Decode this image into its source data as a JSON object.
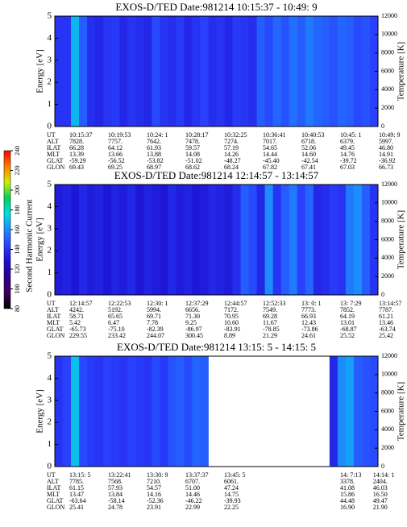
{
  "chart_data": [
    {
      "type": "heatmap",
      "title": "EXOS-D/TED   Date:981214  10:15:37 - 10:49: 9",
      "ylabel": "Energy [eV]",
      "y2label": "Temperature [K]",
      "ylim": [
        0,
        5
      ],
      "yticks": [
        0,
        1,
        2,
        3,
        4,
        5
      ],
      "y2lim": [
        0,
        12000
      ],
      "y2ticks": [
        0,
        2000,
        4000,
        6000,
        8000,
        10000,
        12000
      ],
      "values": [
        140,
        140,
        168,
        150,
        138,
        136,
        140,
        142,
        136,
        140,
        138,
        136,
        146,
        140,
        138,
        142,
        136,
        140,
        144,
        138,
        140,
        136,
        142,
        140,
        138,
        150,
        146,
        152,
        148,
        154,
        150,
        156,
        152,
        150,
        148,
        152,
        150,
        146,
        148,
        144
      ],
      "rows": [
        {
          "label": "UT",
          "values": [
            "10:15:37",
            "10:19:53",
            "10:24: 1",
            "10:28:17",
            "10:32:25",
            "10:36:41",
            "10:40:53",
            "10:45: 1",
            "10:49: 9"
          ]
        },
        {
          "label": "ALT",
          "values": [
            "7828.",
            "7757.",
            "7642.",
            "7478.",
            "7274.",
            "7017.",
            "6718.",
            "6379.",
            "5997."
          ]
        },
        {
          "label": "ILAT",
          "values": [
            "66.28",
            "64.12",
            "61.93",
            "59.57",
            "57.19",
            "54.65",
            "52.06",
            "49.45",
            "46.80"
          ]
        },
        {
          "label": "MLT",
          "values": [
            "13.39",
            "13.66",
            "13.88",
            "14.08",
            "14.26",
            "14.44",
            "14.60",
            "14.76",
            "14.91"
          ]
        },
        {
          "label": "GLAT",
          "values": [
            "-59.29",
            "-56.52",
            "-53.82",
            "-51.02",
            "-48.27",
            "-45.40",
            "-42.54",
            "-39.72",
            "-36.92"
          ]
        },
        {
          "label": "GLON",
          "values": [
            "69.43",
            "69.25",
            "68.97",
            "68.62",
            "68.24",
            "67.82",
            "67.41",
            "67.03",
            "66.73"
          ]
        }
      ]
    },
    {
      "type": "heatmap",
      "title": "EXOS-D/TED   Date:981214  12:14:57 - 13:14:57",
      "ylabel": "Energy [eV]",
      "y2label": "Temperature [K]",
      "ylim": [
        0,
        5
      ],
      "yticks": [
        0,
        1,
        2,
        3,
        4,
        5
      ],
      "y2lim": [
        0,
        12000
      ],
      "y2ticks": [
        0,
        2000,
        4000,
        6000,
        8000,
        10000,
        12000
      ],
      "values": [
        132,
        134,
        130,
        136,
        132,
        134,
        130,
        134,
        132,
        136,
        130,
        134,
        132,
        130,
        136,
        132,
        134,
        130,
        132,
        136,
        134,
        132,
        138,
        150,
        146,
        136,
        160,
        140,
        150,
        156,
        144,
        152,
        136,
        138,
        142,
        140,
        156,
        160,
        150,
        140
      ],
      "rows": [
        {
          "label": "UT",
          "values": [
            "12:14:57",
            "12:22:53",
            "12:30: 1",
            "12:37:29",
            "12:44:57",
            "12:52:33",
            "13: 0: 1",
            "13: 7:29",
            "13:14:57"
          ]
        },
        {
          "label": "ALT",
          "values": [
            "4242.",
            "5192.",
            "5994.",
            "6656.",
            "7172.",
            "7549.",
            "7773.",
            "7852.",
            "7787."
          ]
        },
        {
          "label": "ILAT",
          "values": [
            "58.71",
            "65.65",
            "69.71",
            "71.30",
            "70.95",
            "69.28",
            "66.93",
            "64.19",
            "61.21"
          ]
        },
        {
          "label": "MLT",
          "values": [
            "5.42",
            "6.47",
            "7.78",
            "9.25",
            "10.60",
            "11.67",
            "12.43",
            "13.01",
            "13.46"
          ]
        },
        {
          "label": "GLAT",
          "values": [
            "-65.73",
            "-75.10",
            "-82.39",
            "-86.97",
            "-83.91",
            "-78.85",
            "-73.86",
            "-68.87",
            "-63.74"
          ]
        },
        {
          "label": "GLON",
          "values": [
            "229.55",
            "233.42",
            "244.07",
            "300.45",
            "8.89",
            "21.29",
            "24.61",
            "25.52",
            "25.42"
          ]
        }
      ]
    },
    {
      "type": "heatmap",
      "title": "EXOS-D/TED   Date:981214  13:15: 5 - 14:15: 5",
      "ylabel": "Energy [eV]",
      "y2label": "Temperature [K]",
      "ylim": [
        0,
        5
      ],
      "yticks": [
        0,
        1,
        2,
        3,
        4,
        5
      ],
      "y2lim": [
        0,
        12000
      ],
      "y2ticks": [
        0,
        2000,
        4000,
        6000,
        8000,
        10000,
        12000
      ],
      "values": [
        140,
        144,
        170,
        146,
        142,
        140,
        144,
        142,
        140,
        144,
        142,
        140,
        146,
        142,
        148,
        150,
        146,
        152,
        150,
        null,
        null,
        null,
        null,
        null,
        null,
        null,
        null,
        null,
        null,
        null,
        null,
        null,
        null,
        null,
        136,
        160,
        164,
        150,
        148,
        146
      ],
      "rows": [
        {
          "label": "UT",
          "values": [
            "13:15: 5",
            "13:22:41",
            "13:30: 9",
            "13:37:37",
            "13:45: 5",
            "14: 7:13",
            "14:14: 1"
          ]
        },
        {
          "label": "ALT",
          "values": [
            "7785.",
            "7568.",
            "7210.",
            "6707.",
            "6061.",
            "3378.",
            "2404."
          ]
        },
        {
          "label": "ILAT",
          "values": [
            "61.15",
            "57.93",
            "54.57",
            "51.00",
            "47.24",
            "41.08",
            "46.03"
          ]
        },
        {
          "label": "MLT",
          "values": [
            "13.47",
            "13.84",
            "14.16",
            "14.46",
            "14.75",
            "15.86",
            "16.50"
          ]
        },
        {
          "label": "GLAT",
          "values": [
            "-63.64",
            "-58.14",
            "-52.36",
            "-46.22",
            "-39.93",
            "44.48",
            "49.47"
          ]
        },
        {
          "label": "GLON",
          "values": [
            "25.41",
            "24.78",
            "23.91",
            "22.99",
            "22.25",
            "16.90",
            "21.90"
          ]
        }
      ]
    }
  ],
  "colorbar": {
    "label": "Second Harmonic Current",
    "clim": [
      80,
      240
    ],
    "ticks": [
      80,
      100,
      120,
      140,
      160,
      180,
      200,
      220,
      240
    ],
    "colormap": [
      "#000000",
      "#3a0060",
      "#30008a",
      "#1c10d0",
      "#2a40ff",
      "#1c8cff",
      "#00e0e0",
      "#00d060",
      "#d0f000",
      "#ff8000",
      "#ff0000"
    ]
  }
}
